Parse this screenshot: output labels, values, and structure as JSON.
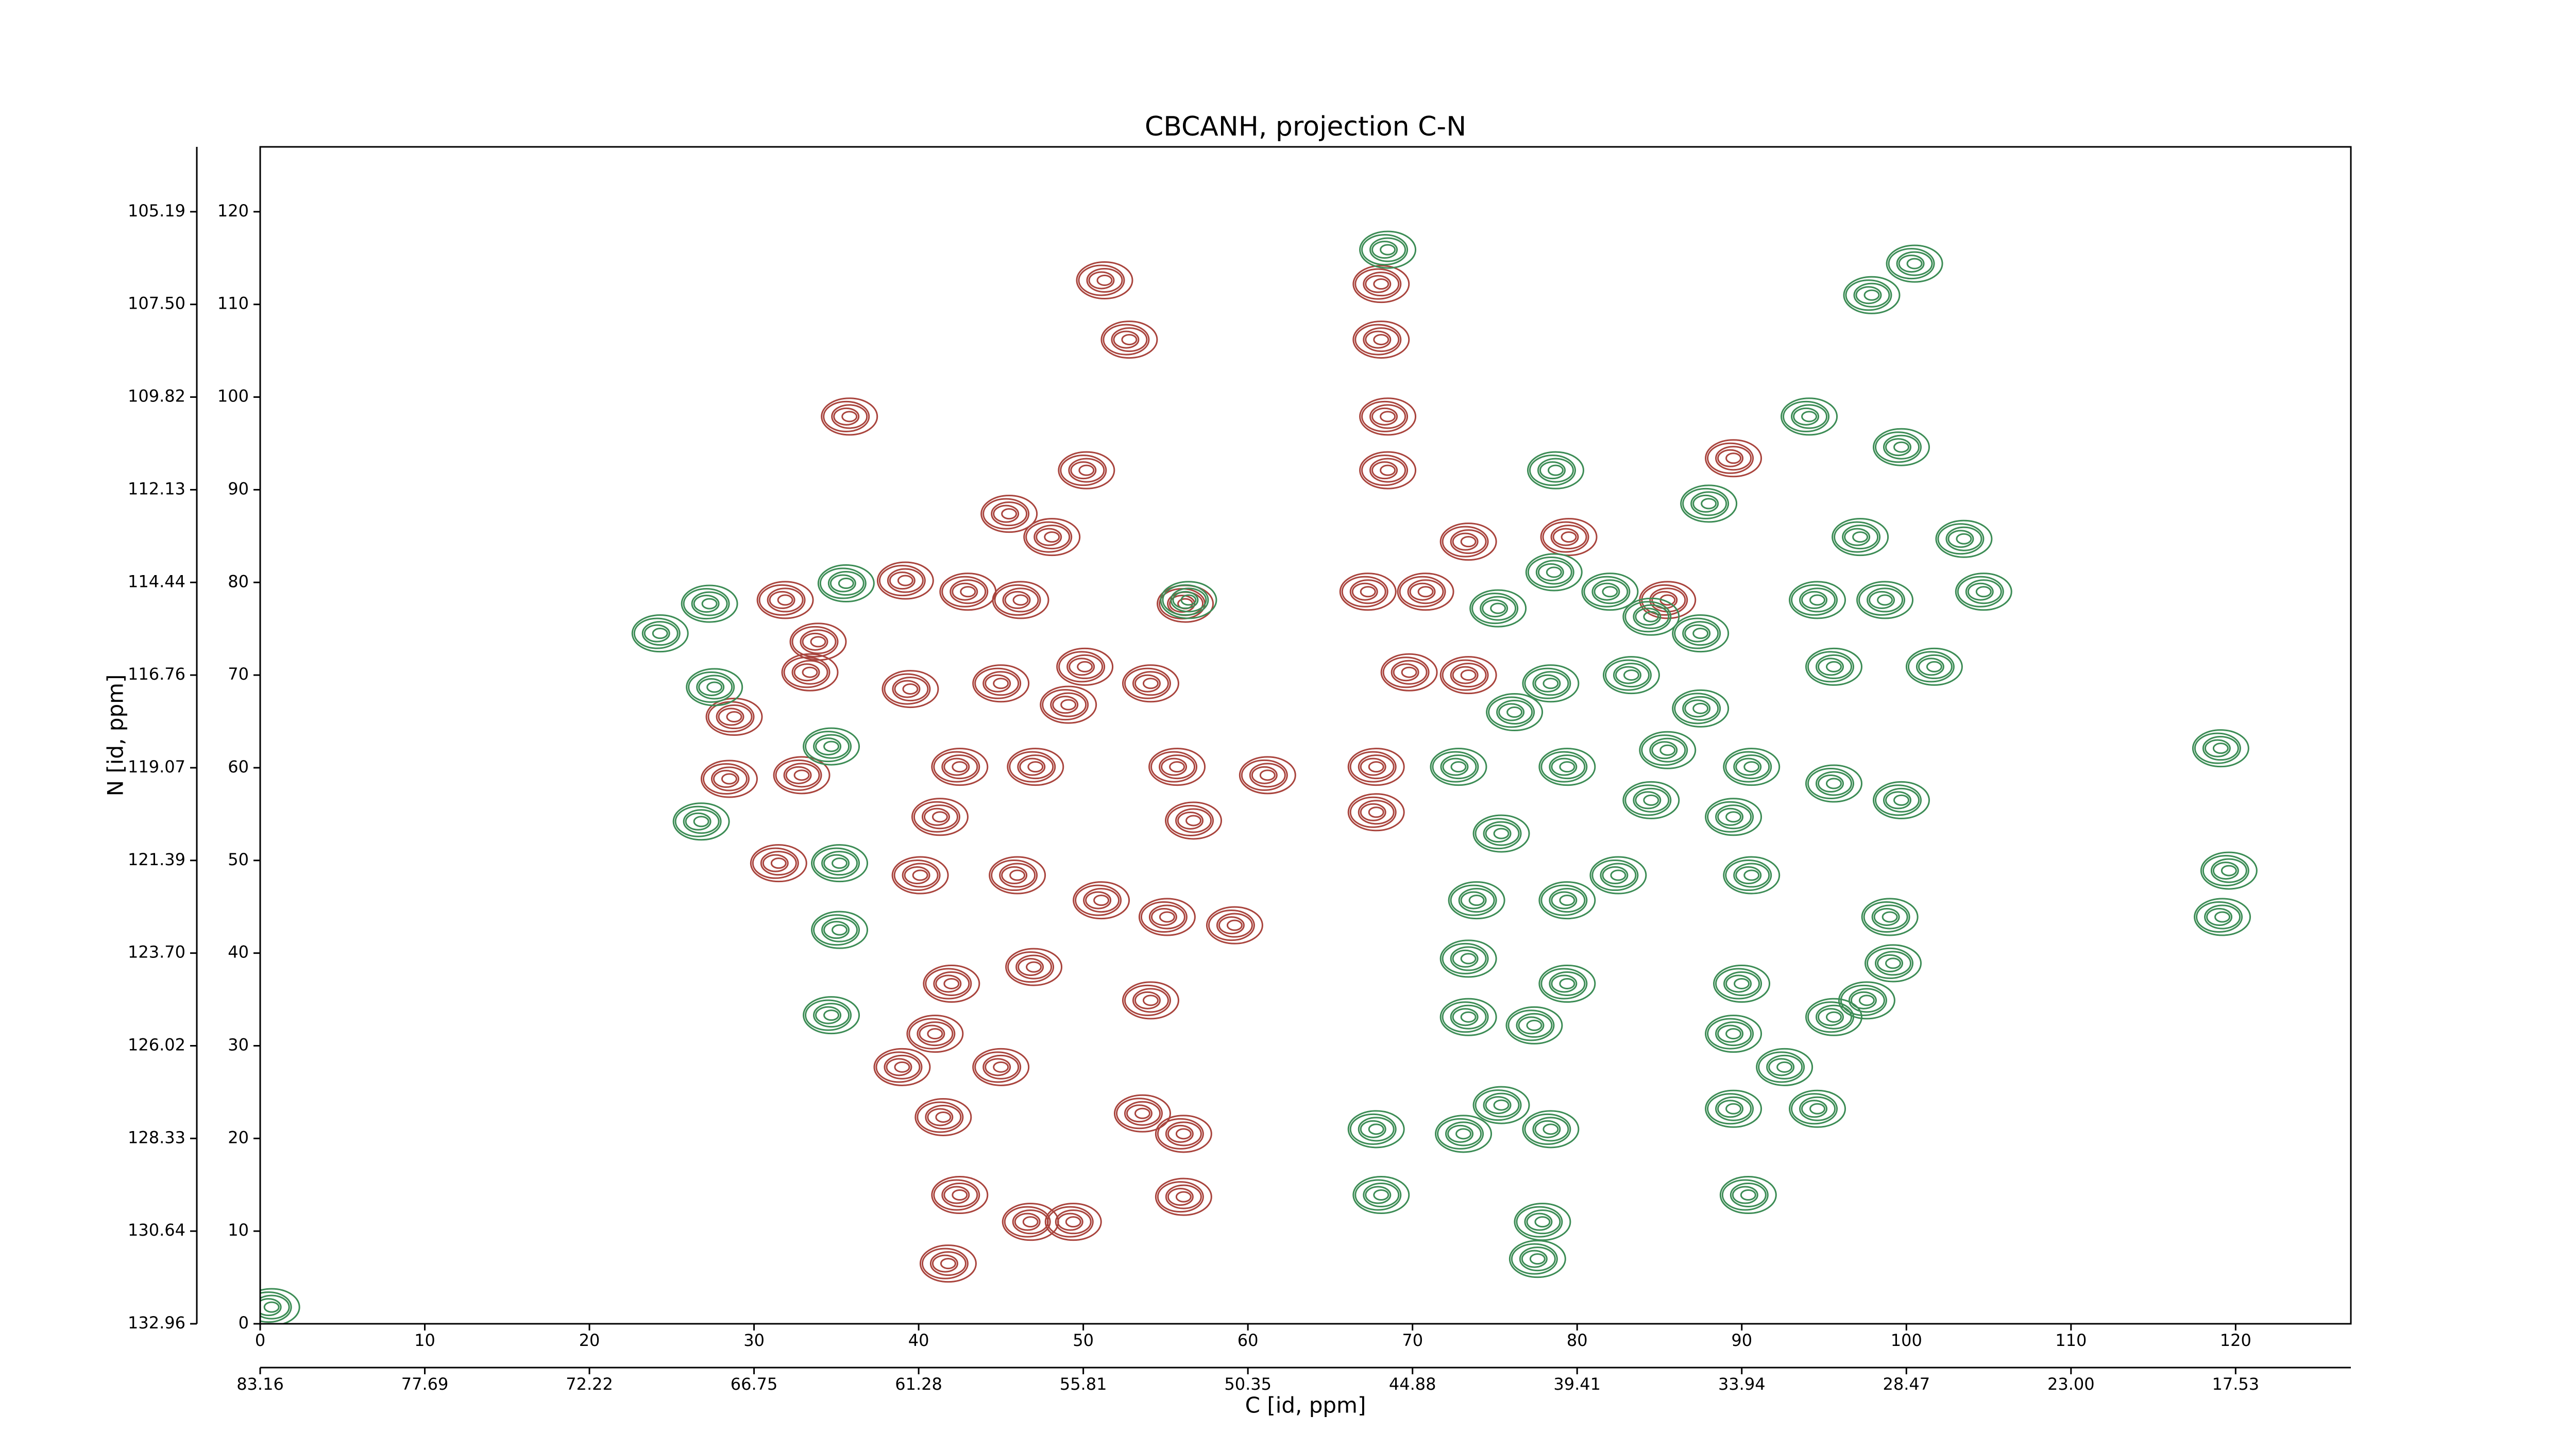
{
  "chart_data": {
    "type": "contour",
    "title": "CBCANH, projection C-N",
    "xlabel": "C [id, ppm]",
    "ylabel": "N [id, ppm]",
    "xlim": [
      0,
      127
    ],
    "ylim": [
      0,
      127
    ],
    "xticks": [
      0,
      10,
      20,
      30,
      40,
      50,
      60,
      70,
      80,
      90,
      100,
      110,
      120
    ],
    "yticks": [
      0,
      10,
      20,
      30,
      40,
      50,
      60,
      70,
      80,
      90,
      100,
      110,
      120
    ],
    "x2lim": [
      0,
      127
    ],
    "x2ticks": [
      {
        "value": 0,
        "label": "83.16"
      },
      {
        "value": 10,
        "label": "77.69"
      },
      {
        "value": 20,
        "label": "72.22"
      },
      {
        "value": 30,
        "label": "66.75"
      },
      {
        "value": 40,
        "label": "61.28"
      },
      {
        "value": 50,
        "label": "55.81"
      },
      {
        "value": 60,
        "label": "50.35"
      },
      {
        "value": 70,
        "label": "44.88"
      },
      {
        "value": 80,
        "label": "39.41"
      },
      {
        "value": 90,
        "label": "33.94"
      },
      {
        "value": 100,
        "label": "28.47"
      },
      {
        "value": 110,
        "label": "23.00"
      },
      {
        "value": 120,
        "label": "17.53"
      }
    ],
    "y2lim": [
      0,
      127
    ],
    "y2ticks": [
      {
        "value": 0,
        "label": "132.96"
      },
      {
        "value": 10,
        "label": "130.64"
      },
      {
        "value": 20,
        "label": "128.33"
      },
      {
        "value": 30,
        "label": "126.02"
      },
      {
        "value": 40,
        "label": "123.70"
      },
      {
        "value": 50,
        "label": "121.39"
      },
      {
        "value": 60,
        "label": "119.07"
      },
      {
        "value": 70,
        "label": "116.76"
      },
      {
        "value": 80,
        "label": "114.44"
      },
      {
        "value": 90,
        "label": "112.13"
      },
      {
        "value": 100,
        "label": "109.82"
      },
      {
        "value": 110,
        "label": "107.50"
      },
      {
        "value": 120,
        "label": "105.19"
      }
    ],
    "series": [
      {
        "color": "#a9443d",
        "x": [
          51.2,
          52.7,
          68.0,
          68.0,
          68.4,
          68.4,
          35.7,
          50.1,
          45.4,
          48.0,
          39.1,
          42.9,
          46.1,
          31.8,
          33.8,
          33.3,
          39.4,
          44.9,
          50.0,
          56.1,
          54.0,
          28.7,
          28.4,
          32.8,
          42.4,
          47.0,
          55.6,
          56.6,
          41.2,
          31.4,
          40.0,
          45.9,
          51.0,
          55.0,
          59.1,
          41.9,
          46.9,
          54.0,
          40.9,
          38.9,
          44.9,
          41.4,
          53.5,
          56.0,
          42.4,
          46.7,
          49.3,
          56.0,
          41.7,
          67.2,
          70.7,
          67.7,
          67.7,
          89.4,
          79.4,
          73.3,
          85.4,
          69.7,
          73.3,
          49.0,
          61.1
        ],
        "y": [
          112.6,
          106.2,
          112.2,
          106.2,
          97.9,
          92.1,
          97.9,
          92.1,
          87.4,
          84.9,
          80.2,
          79.0,
          78.1,
          78.1,
          73.6,
          70.3,
          68.5,
          69.1,
          70.9,
          77.7,
          69.1,
          65.5,
          58.8,
          59.2,
          60.1,
          60.1,
          60.1,
          54.3,
          54.7,
          49.7,
          48.4,
          48.4,
          45.7,
          43.9,
          43.0,
          36.7,
          38.5,
          34.9,
          31.3,
          27.7,
          27.7,
          22.3,
          22.7,
          20.5,
          13.9,
          11.0,
          11.0,
          13.7,
          6.5,
          79.0,
          79.0,
          60.1,
          55.2,
          93.4,
          84.9,
          84.4,
          78.1,
          70.3,
          70.0,
          66.8,
          59.2
        ]
      },
      {
        "color": "#3c8c55",
        "x": [
          68.4,
          100.4,
          97.8,
          94.0,
          99.6,
          78.6,
          87.9,
          97.1,
          103.4,
          35.5,
          27.2,
          24.2,
          27.5,
          34.6,
          26.7,
          35.1,
          35.1,
          34.6,
          56.3,
          75.1,
          78.5,
          81.9,
          84.4,
          87.4,
          78.3,
          83.2,
          76.1,
          87.4,
          94.5,
          98.6,
          104.6,
          95.5,
          101.6,
          72.7,
          79.3,
          85.4,
          90.5,
          95.5,
          99.6,
          84.4,
          89.4,
          75.3,
          79.3,
          82.4,
          90.5,
          73.8,
          73.3,
          79.3,
          73.3,
          77.3,
          89.9,
          89.4,
          95.5,
          97.5,
          99.1,
          92.5,
          89.4,
          94.5,
          67.7,
          73.0,
          75.3,
          78.3,
          68.0,
          90.3,
          77.8,
          77.5,
          98.9,
          119.5,
          119.1,
          119.0,
          0.6
        ],
        "y": [
          115.9,
          114.4,
          111.0,
          97.9,
          94.6,
          92.1,
          88.5,
          84.9,
          84.7,
          79.9,
          77.7,
          74.5,
          68.7,
          62.3,
          54.2,
          49.7,
          42.5,
          33.3,
          78.1,
          77.2,
          81.1,
          79.0,
          76.3,
          74.5,
          69.1,
          70.0,
          66.0,
          66.4,
          78.1,
          78.1,
          79.0,
          70.9,
          70.9,
          60.1,
          60.1,
          61.9,
          60.1,
          58.3,
          56.5,
          56.5,
          54.7,
          52.9,
          45.7,
          48.4,
          48.4,
          45.7,
          39.4,
          36.7,
          33.1,
          32.2,
          36.7,
          31.3,
          33.1,
          34.9,
          38.9,
          27.7,
          23.2,
          23.2,
          21.0,
          20.5,
          23.6,
          21.0,
          13.9,
          13.9,
          11.0,
          7.0,
          43.9,
          48.9,
          43.9,
          62.1,
          1.8
        ]
      }
    ]
  }
}
